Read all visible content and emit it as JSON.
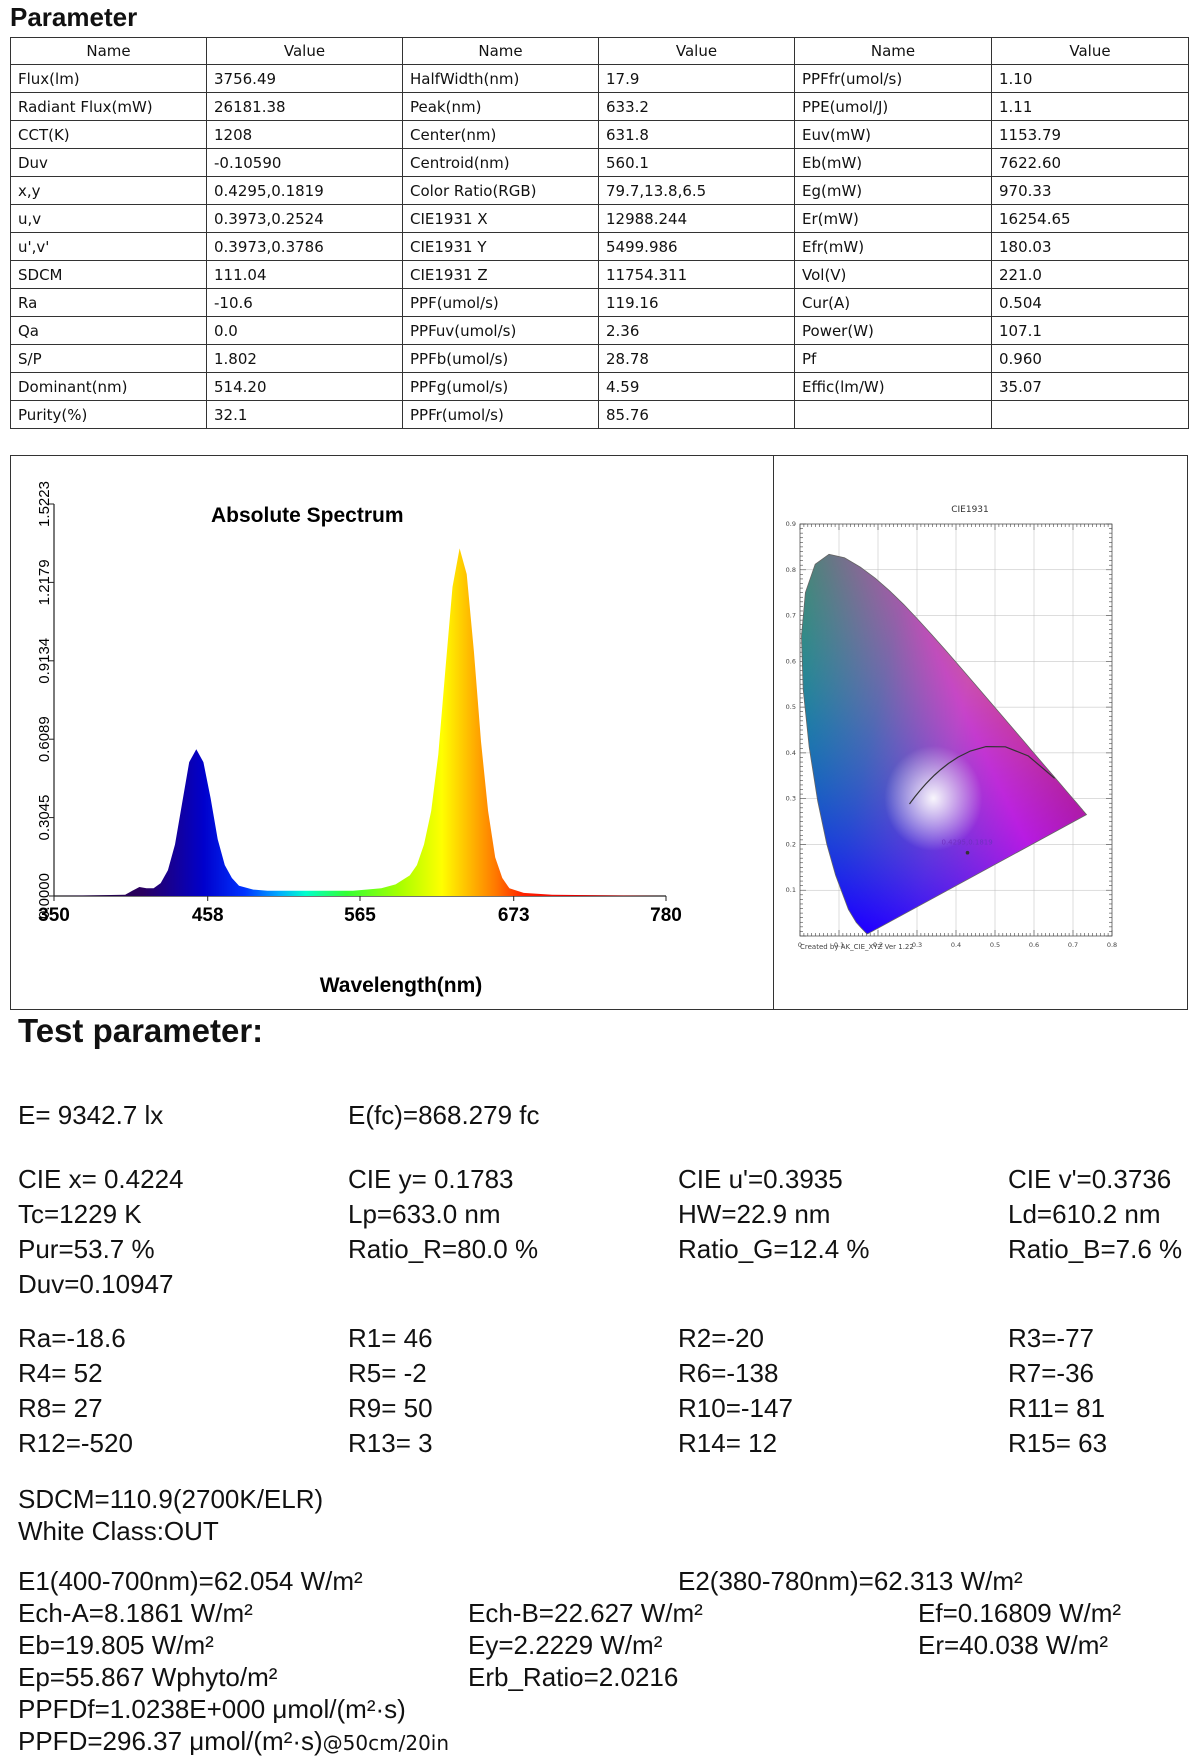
{
  "section_title": "Parameter",
  "table": {
    "headers": [
      "Name",
      "Value",
      "Name",
      "Value",
      "Name",
      "Value"
    ],
    "rows": [
      [
        "Flux(lm)",
        "3756.49",
        "HalfWidth(nm)",
        "17.9",
        "PPFfr(umol/s)",
        "1.10"
      ],
      [
        "Radiant Flux(mW)",
        "26181.38",
        "Peak(nm)",
        "633.2",
        "PPE(umol/J)",
        "1.11"
      ],
      [
        "CCT(K)",
        "1208",
        "Center(nm)",
        "631.8",
        "Euv(mW)",
        "1153.79"
      ],
      [
        "Duv",
        "-0.10590",
        "Centroid(nm)",
        "560.1",
        "Eb(mW)",
        "7622.60"
      ],
      [
        "x,y",
        "0.4295,0.1819",
        "Color Ratio(RGB)",
        "79.7,13.8,6.5",
        "Eg(mW)",
        "970.33"
      ],
      [
        "u,v",
        "0.3973,0.2524",
        "CIE1931 X",
        "12988.244",
        "Er(mW)",
        "16254.65"
      ],
      [
        "u',v'",
        "0.3973,0.3786",
        "CIE1931 Y",
        "5499.986",
        "Efr(mW)",
        "180.03"
      ],
      [
        "SDCM",
        "111.04",
        "CIE1931 Z",
        "11754.311",
        "Vol(V)",
        "221.0"
      ],
      [
        "Ra",
        "-10.6",
        "PPF(umol/s)",
        "119.16",
        "Cur(A)",
        "0.504"
      ],
      [
        "Qa",
        "0.0",
        "PPFuv(umol/s)",
        "2.36",
        "Power(W)",
        "107.1"
      ],
      [
        "S/P",
        "1.802",
        "PPFb(umol/s)",
        "28.78",
        "Pf",
        "0.960"
      ],
      [
        "Dominant(nm)",
        "514.20",
        "PPFg(umol/s)",
        "4.59",
        "Effic(lm/W)",
        "35.07"
      ],
      [
        "Purity(%)",
        "32.1",
        "PPFr(umol/s)",
        "85.76",
        "",
        ""
      ]
    ]
  },
  "chart_data": [
    {
      "type": "area",
      "title": "Absolute Spectrum",
      "xlabel": "Wavelength(nm)",
      "ylabel": "",
      "xlim": [
        350,
        780
      ],
      "ylim": [
        0,
        1.5223
      ],
      "x_ticks": [
        "350",
        "458",
        "565",
        "673",
        "780"
      ],
      "y_ticks": [
        "0.0000",
        "0.3045",
        "0.6089",
        "0.9134",
        "1.2179",
        "1.5223"
      ],
      "grid": false,
      "series": [
        {
          "x": [
            350,
            400,
            405,
            410,
            415,
            420,
            425,
            430,
            435,
            440,
            445,
            450,
            455,
            460,
            465,
            470,
            475,
            480,
            490,
            500,
            520,
            540,
            560,
            580,
            590,
            600,
            605,
            610,
            615,
            620,
            625,
            630,
            635,
            640,
            645,
            650,
            655,
            660,
            665,
            670,
            680,
            700,
            750,
            780
          ],
          "y": [
            0,
            0.005,
            0.02,
            0.035,
            0.03,
            0.03,
            0.05,
            0.1,
            0.2,
            0.36,
            0.52,
            0.57,
            0.52,
            0.38,
            0.22,
            0.12,
            0.07,
            0.04,
            0.025,
            0.02,
            0.02,
            0.02,
            0.02,
            0.03,
            0.045,
            0.08,
            0.12,
            0.2,
            0.33,
            0.55,
            0.88,
            1.2,
            1.35,
            1.25,
            0.95,
            0.6,
            0.33,
            0.15,
            0.07,
            0.03,
            0.012,
            0.005,
            0.002,
            0
          ]
        }
      ]
    },
    {
      "type": "scatter",
      "title": "CIE1931",
      "xlim": [
        0,
        0.8
      ],
      "ylim": [
        0,
        0.9
      ],
      "x_ticks": [
        "0",
        "0.1",
        "0.2",
        "0.3",
        "0.4",
        "0.5",
        "0.6",
        "0.7",
        "0.8"
      ],
      "y_ticks": [
        "0.1",
        "0.2",
        "0.3",
        "0.4",
        "0.5",
        "0.6",
        "0.7",
        "0.8",
        "0.9"
      ],
      "footnote": "Created by AK_CIE_XYZ Ver 1.22",
      "point": {
        "x": 0.4295,
        "y": 0.1819,
        "label": "0.4295,0.1819"
      },
      "locus": {
        "x": [
          0.1741,
          0.1738,
          0.1736,
          0.1733,
          0.1726,
          0.1714,
          0.1689,
          0.1644,
          0.1566,
          0.144,
          0.1241,
          0.0913,
          0.0687,
          0.0454,
          0.0235,
          0.0082,
          0.0039,
          0.0139,
          0.0389,
          0.0743,
          0.1142,
          0.1547,
          0.1929,
          0.2296,
          0.2658,
          0.3016,
          0.3373,
          0.3731,
          0.4087,
          0.4441,
          0.4788,
          0.5125,
          0.5448,
          0.5752,
          0.6029,
          0.627,
          0.6482,
          0.6658,
          0.6801,
          0.6915,
          0.7006,
          0.7079,
          0.714,
          0.719,
          0.723,
          0.726,
          0.7347
        ],
        "y": [
          0.005,
          0.0049,
          0.0049,
          0.0048,
          0.0048,
          0.0051,
          0.0069,
          0.0109,
          0.0177,
          0.0297,
          0.0578,
          0.1327,
          0.2007,
          0.295,
          0.4127,
          0.5384,
          0.6548,
          0.7502,
          0.812,
          0.8338,
          0.8262,
          0.8059,
          0.7816,
          0.7543,
          0.7243,
          0.6923,
          0.6589,
          0.6245,
          0.5896,
          0.5547,
          0.5202,
          0.4866,
          0.4544,
          0.4242,
          0.3965,
          0.3725,
          0.3514,
          0.334,
          0.3197,
          0.3083,
          0.2993,
          0.292,
          0.2859,
          0.2809,
          0.277,
          0.274,
          0.2653
        ]
      }
    }
  ],
  "test_title": "Test parameter:",
  "tp": {
    "e": "E=  9342.7 lx",
    "efc": "E(fc)=868.279 fc",
    "cie_x": "CIE x= 0.4224",
    "cie_y": "CIE y= 0.1783",
    "cie_u": "CIE u'=0.3935",
    "cie_v": "CIE v'=0.3736",
    "tc": "Tc=1229 K",
    "lp": "Lp=633.0 nm",
    "hw": "HW=22.9 nm",
    "ld": "Ld=610.2 nm",
    "pur": "Pur=53.7 %",
    "ratio_r": "Ratio_R=80.0 %",
    "ratio_g": "Ratio_G=12.4 %",
    "ratio_b": "Ratio_B=7.6 %",
    "duv": "Duv=0.10947",
    "ra": "Ra=-18.6",
    "r1": "R1= 46",
    "r2": "R2=-20",
    "r3": "R3=-77",
    "r4": "R4= 52",
    "r5": "R5= -2",
    "r6": "R6=-138",
    "r7": "R7=-36",
    "r8": "R8= 27",
    "r9": "R9= 50",
    "r10": "R10=-147",
    "r11": "R11= 81",
    "r12": "R12=-520",
    "r13": "R13=  3",
    "r14": "R14= 12",
    "r15": "R15= 63",
    "sdcm": "SDCM=110.9(2700K/ELR)",
    "white_class": "White Class:OUT",
    "e1": "E1(400-700nm)=62.054 W/m²",
    "e2": "E2(380-780nm)=62.313 W/m²",
    "ech_a": "Ech-A=8.1861 W/m²",
    "ech_b": "Ech-B=22.627 W/m²",
    "ef": "Ef=0.16809 W/m²",
    "eb": "Eb=19.805 W/m²",
    "ey": "Ey=2.2229 W/m²",
    "er": "Er=40.038 W/m²",
    "ep": "Ep=55.867 Wphyto/m²",
    "erb": "Erb_Ratio=2.0216",
    "ppfdf": "PPFDf=1.0238E+000 μmol/(m²·s)",
    "ppfd": "PPFD=296.37 μmol/(m²·s)",
    "ppfd_note": "@50cm/20in"
  }
}
